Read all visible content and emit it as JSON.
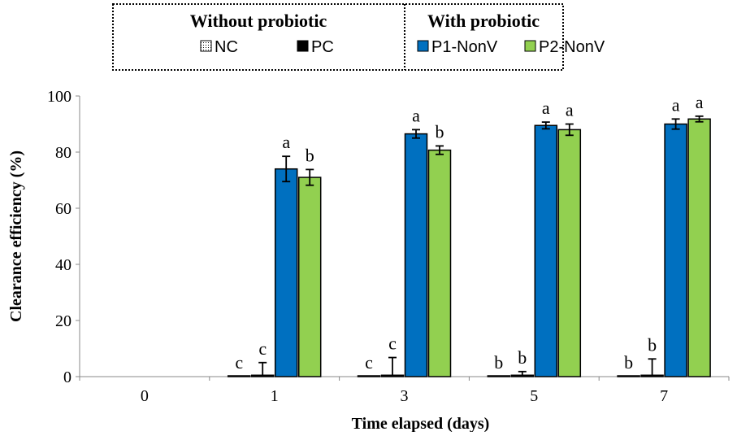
{
  "chart_data": {
    "type": "bar",
    "xlabel": "Time elapsed (days)",
    "ylabel": "Clearance efficiency (%)",
    "ylim": [
      0,
      100
    ],
    "yticks": [
      0,
      20,
      40,
      60,
      80,
      100
    ],
    "categories": [
      "0",
      "1",
      "3",
      "5",
      "7"
    ],
    "legend": {
      "placement": "top",
      "groups": [
        {
          "title": "Without probiotic",
          "entries": [
            "NC",
            "PC"
          ]
        },
        {
          "title": "With probiotic",
          "entries": [
            "P1-NonV",
            "P2-NonV"
          ]
        }
      ]
    },
    "series": [
      {
        "name": "NC",
        "color": "#ffffff",
        "pattern": "dotted",
        "values": [
          null,
          0,
          0,
          0,
          0
        ],
        "errors": [
          null,
          0,
          0,
          0,
          0
        ],
        "letters": [
          "",
          "c",
          "c",
          "b",
          "b"
        ]
      },
      {
        "name": "PC",
        "color": "#000000",
        "values": [
          null,
          0.5,
          0.5,
          0.5,
          0.5
        ],
        "errors": [
          null,
          4.5,
          6.3,
          1.3,
          5.8
        ],
        "letters": [
          "",
          "c",
          "c",
          "b",
          "b"
        ]
      },
      {
        "name": "P1-NonV",
        "color": "#0070c0",
        "values": [
          null,
          74,
          86.5,
          89.5,
          90
        ],
        "errors": [
          null,
          4.5,
          1.5,
          1.2,
          1.8
        ],
        "letters": [
          "",
          "a",
          "a",
          "a",
          "a"
        ]
      },
      {
        "name": "P2-NonV",
        "color": "#92d050",
        "values": [
          null,
          71,
          80.7,
          88,
          91.8
        ],
        "errors": [
          null,
          2.8,
          1.5,
          2.0,
          1.0
        ],
        "letters": [
          "",
          "b",
          "b",
          "a",
          "a"
        ]
      }
    ]
  }
}
